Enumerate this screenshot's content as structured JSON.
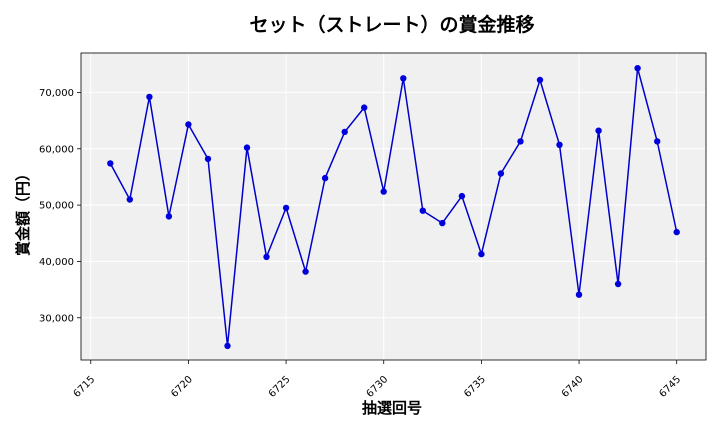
{
  "chart_data": {
    "type": "line",
    "title": "セット（ストレート）の賞金推移",
    "xlabel": "抽選回号",
    "ylabel": "賞金額（円）",
    "xlim": [
      6714.5,
      6746.5
    ],
    "ylim": [
      22500,
      77000
    ],
    "xticks": [
      6715,
      6720,
      6725,
      6730,
      6735,
      6740,
      6745
    ],
    "yticks": [
      30000,
      40000,
      50000,
      60000,
      70000
    ],
    "ytick_labels": [
      "30,000",
      "40,000",
      "50,000",
      "60,000",
      "70,000"
    ],
    "grid": true,
    "background": "#f0f0f0",
    "line_color": "#0000cc",
    "marker_color": "#0000dd",
    "x": [
      6716,
      6717,
      6718,
      6719,
      6720,
      6721,
      6722,
      6723,
      6724,
      6725,
      6726,
      6727,
      6728,
      6729,
      6730,
      6731,
      6732,
      6733,
      6734,
      6735,
      6736,
      6737,
      6738,
      6739,
      6740,
      6741,
      6742,
      6743,
      6744,
      6745
    ],
    "values": [
      57400,
      51000,
      69200,
      48000,
      64300,
      58200,
      25000,
      60200,
      40800,
      49500,
      38200,
      54800,
      63000,
      67300,
      52400,
      72500,
      49000,
      46800,
      51600,
      41300,
      55600,
      61300,
      72200,
      60700,
      34100,
      63200,
      36000,
      74300,
      61300,
      45200
    ]
  }
}
